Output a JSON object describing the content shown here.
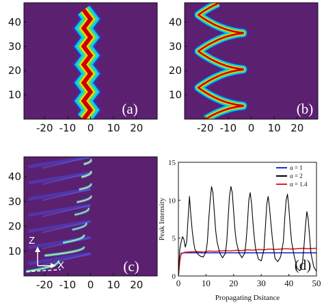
{
  "chart_data": [
    {
      "type": "heatmap",
      "panel_label": "(a)",
      "x_ticks": [
        "-20",
        "-10",
        "0",
        "10",
        "20"
      ],
      "y_ticks": [
        "10",
        "20",
        "30",
        "40"
      ],
      "xlim": [
        -29,
        29
      ],
      "ylim": [
        0,
        48
      ],
      "beam": {
        "shape": "zigzag",
        "amplitude": 1.5,
        "period": 7.5,
        "center": -1.5,
        "width": 2.8
      },
      "colors": {
        "background": "#5b2070"
      }
    },
    {
      "type": "heatmap",
      "panel_label": "(b)",
      "x_ticks": [
        "-20",
        "-10",
        "0",
        "10",
        "20"
      ],
      "y_ticks": [
        "10",
        "20",
        "30",
        "40"
      ],
      "xlim": [
        -29,
        29
      ],
      "ylim": [
        0,
        48
      ],
      "beam": {
        "shape": "bounce",
        "x_min": -23,
        "x_max": -1,
        "period": 15,
        "first_reflection": 5.5
      },
      "colors": {
        "background": "#5b2070"
      }
    },
    {
      "type": "heatmap",
      "panel_label": "(c)",
      "x_ticks": [
        "-20",
        "-10",
        "0",
        "10",
        "20"
      ],
      "y_ticks": [
        "10",
        "20",
        "30",
        "40"
      ],
      "xlim": [
        -29,
        29
      ],
      "ylim": [
        0,
        48
      ],
      "axis_arrows": {
        "vertical": "Z",
        "horizontal": "X"
      },
      "colors": {
        "background": "#5b2070"
      }
    },
    {
      "type": "line",
      "panel_label": "(d)",
      "xlabel": "Propagating Dsitance",
      "ylabel": "Peak Intensity",
      "xlim": [
        0,
        50
      ],
      "ylim": [
        0,
        15
      ],
      "x_ticks": [
        "0",
        "10",
        "20",
        "30",
        "40",
        "50"
      ],
      "y_ticks": [
        "0",
        "5",
        "10",
        "15"
      ],
      "legend_position": "top-right",
      "series": [
        {
          "name": "α = 1",
          "color": "#1f2bd6",
          "x": [
            0,
            0.5,
            1,
            2,
            5,
            10,
            15,
            20,
            25,
            30,
            35,
            40,
            45,
            50
          ],
          "y": [
            0,
            2,
            3.0,
            3.05,
            3.05,
            3.05,
            3.05,
            3.05,
            3.05,
            3.05,
            3.05,
            3.05,
            3.05,
            3.05
          ]
        },
        {
          "name": "α = 2",
          "color": "#000000",
          "x": [
            0,
            0.5,
            1,
            1.5,
            2,
            2.5,
            3,
            3.5,
            4,
            4.5,
            5,
            5.5,
            6,
            6.5,
            7,
            8,
            9,
            10,
            10.5,
            11,
            11.5,
            12,
            12.5,
            13,
            13.5,
            14,
            15,
            16,
            17,
            17.5,
            18,
            18.5,
            19,
            19.5,
            20,
            20.5,
            21,
            22,
            23,
            24,
            24.5,
            25,
            25.5,
            26,
            26.5,
            27,
            27.5,
            28,
            29,
            30,
            31,
            31.5,
            32,
            32.5,
            33,
            33.5,
            34,
            34.5,
            35,
            36,
            37,
            38,
            38.5,
            39,
            39.5,
            40,
            40.5,
            41,
            42,
            43,
            44,
            44.5,
            45,
            45.5,
            46,
            46.5,
            47,
            48,
            49,
            50
          ],
          "y": [
            0,
            3.5,
            4.5,
            5.2,
            4.8,
            3.8,
            4.5,
            7.5,
            10.5,
            8.0,
            6.0,
            4.5,
            3.5,
            3.2,
            2.9,
            2.6,
            2.5,
            3.2,
            4.5,
            7.5,
            10.0,
            11.8,
            11.0,
            8.5,
            6.0,
            4.5,
            3.0,
            2.4,
            3.0,
            4.5,
            7.5,
            10.5,
            11.8,
            11.0,
            8.5,
            6.0,
            4.5,
            3.0,
            2.4,
            3.0,
            4.5,
            7.0,
            10.0,
            11.0,
            9.5,
            7.0,
            5.0,
            3.5,
            2.2,
            2.0,
            3.5,
            6.5,
            9.5,
            10.5,
            9.0,
            7.0,
            5.0,
            3.5,
            2.3,
            1.9,
            2.5,
            4.5,
            7.5,
            10.0,
            10.8,
            9.0,
            6.5,
            4.5,
            2.5,
            1.0,
            0.7,
            1.0,
            2.0,
            4.0,
            6.5,
            8.5,
            7.5,
            3.0,
            1.2,
            0.6
          ]
        },
        {
          "name": "α = 1.4",
          "color": "#e0201b",
          "x": [
            0,
            0.5,
            1,
            2,
            3,
            5,
            7,
            9,
            11,
            13,
            15,
            17,
            19,
            21,
            23,
            25,
            27,
            29,
            31,
            33,
            35,
            37,
            39,
            41,
            43,
            45,
            47,
            50
          ],
          "y": [
            0,
            2,
            2.9,
            3.1,
            3.15,
            3.2,
            3.2,
            3.15,
            3.3,
            3.25,
            3.3,
            3.35,
            3.3,
            3.4,
            3.35,
            3.45,
            3.4,
            3.5,
            3.45,
            3.55,
            3.5,
            3.55,
            3.6,
            3.55,
            3.6,
            3.65,
            3.6,
            3.65
          ]
        }
      ]
    }
  ]
}
